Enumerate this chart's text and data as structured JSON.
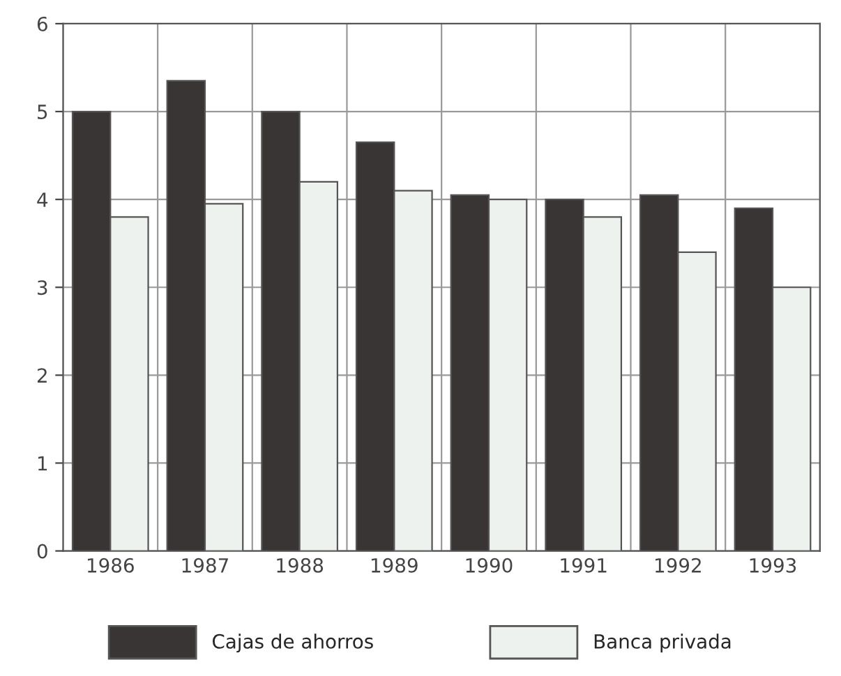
{
  "chart_data": {
    "type": "bar",
    "categories": [
      "1986",
      "1987",
      "1988",
      "1989",
      "1990",
      "1991",
      "1992",
      "1993"
    ],
    "series": [
      {
        "name": "Cajas de ahorros",
        "color": "#3a3535",
        "values": [
          5.0,
          5.35,
          5.0,
          4.65,
          4.05,
          4.0,
          4.05,
          3.9
        ]
      },
      {
        "name": "Banca privada",
        "color": "#eef2ee",
        "values": [
          3.8,
          3.95,
          4.2,
          4.1,
          4.0,
          3.8,
          3.4,
          3.0
        ]
      }
    ],
    "ylim": [
      0,
      6
    ],
    "yticks": [
      0,
      1,
      2,
      3,
      4,
      5,
      6
    ],
    "grid": true,
    "legend": "bottom"
  }
}
